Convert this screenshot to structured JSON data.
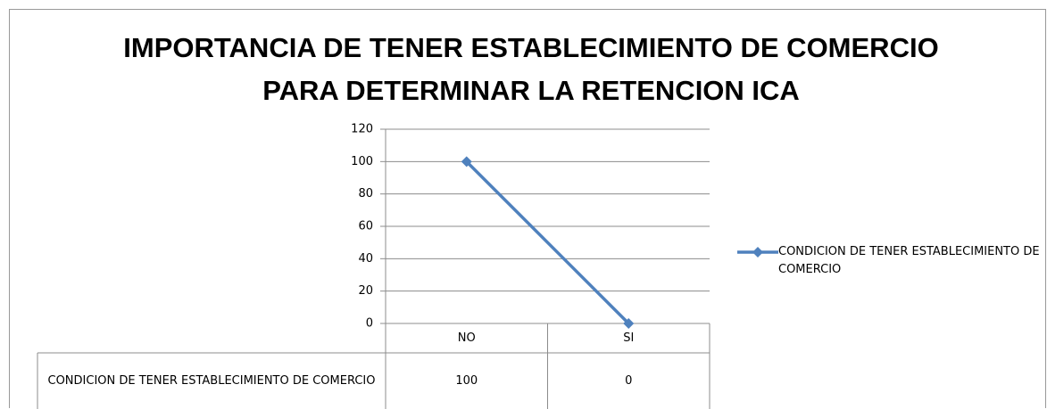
{
  "chart_data": {
    "type": "line",
    "title": "IMPORTANCIA DE TENER ESTABLECIMIENTO DE COMERCIO\nPARA DETERMINAR LA RETENCION ICA",
    "categories": [
      "NO",
      "SI"
    ],
    "series": [
      {
        "name": "CONDICION DE TENER ESTABLECIMIENTO DE COMERCIO",
        "color": "#4f81bd",
        "values": [
          100,
          0
        ]
      }
    ],
    "ylim": [
      0,
      120
    ],
    "yticks": [
      0,
      20,
      40,
      60,
      80,
      100,
      120
    ],
    "grid": true,
    "legend": "right",
    "data_table": true
  }
}
